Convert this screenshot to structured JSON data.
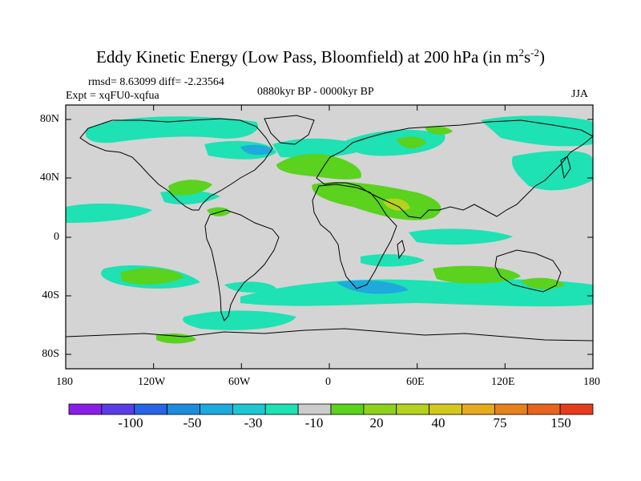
{
  "title": {
    "main": "Eddy Kinetic Energy (Low Pass, Bloomfield) at 200 hPa (in m",
    "sup1": "2",
    "mid": "s",
    "sup2": "-2",
    "close": ")"
  },
  "stats": "rmsd= 8.63099 diff= -2.23564",
  "experiment": "Expt = xqFU0-xqfua",
  "period": "0880kyr BP - 0000kyr BP",
  "season": "JJA",
  "axes": {
    "x_ticks": [
      "180",
      "120W",
      "60W",
      "0",
      "60E",
      "120E",
      "180"
    ],
    "y_ticks": [
      "80N",
      "40N",
      "0",
      "40S",
      "80S"
    ]
  },
  "colorbar": {
    "colors": [
      "#8b1ee6",
      "#5a3ce6",
      "#2864e6",
      "#1e8cdc",
      "#1eaadc",
      "#1ec8d2",
      "#1ee1b4",
      "#cccccc",
      "#5ad21e",
      "#8cd21e",
      "#b4d21e",
      "#d2c81e",
      "#e6aa1e",
      "#e6821e",
      "#e6641e",
      "#e63c1e"
    ],
    "labels": [
      "-100",
      "-50",
      "-30",
      "-10",
      "20",
      "40",
      "75",
      "150"
    ]
  }
}
